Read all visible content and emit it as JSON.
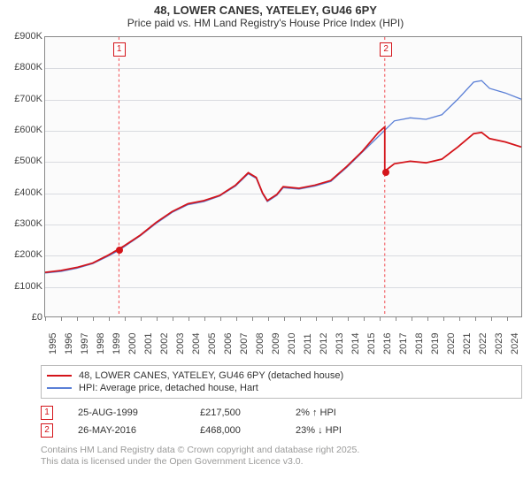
{
  "title": {
    "line1": "48, LOWER CANES, YATELEY, GU46 6PY",
    "line2": "Price paid vs. HM Land Registry's House Price Index (HPI)",
    "fontsize_line1": 13,
    "fontsize_line2": 12
  },
  "chart": {
    "type": "line",
    "background_color": "#fbfbfb",
    "grid_color": "#d9dbe0",
    "axis_color": "#888888",
    "label_fontsize": 11,
    "y": {
      "min": 0,
      "max": 900000,
      "step": 100000,
      "labels": [
        "£0",
        "£100K",
        "£200K",
        "£300K",
        "£400K",
        "£500K",
        "£600K",
        "£700K",
        "£800K",
        "£900K"
      ]
    },
    "x": {
      "min": 1995,
      "max": 2025,
      "step": 1,
      "labels": [
        "1995",
        "1996",
        "1997",
        "1998",
        "1999",
        "2000",
        "2001",
        "2002",
        "2003",
        "2004",
        "2005",
        "2006",
        "2007",
        "2008",
        "2009",
        "2010",
        "2011",
        "2012",
        "2013",
        "2014",
        "2015",
        "2016",
        "2017",
        "2018",
        "2019",
        "2020",
        "2021",
        "2022",
        "2023",
        "2024"
      ]
    },
    "series": {
      "hpi": {
        "label": "HPI: Average price, detached house, Hart",
        "color": "#5a7fd6",
        "width": 1.3,
        "points": [
          [
            1995.0,
            140000
          ],
          [
            1996.0,
            145000
          ],
          [
            1997.0,
            155000
          ],
          [
            1998.0,
            170000
          ],
          [
            1999.0,
            195000
          ],
          [
            1999.65,
            213000
          ],
          [
            2000.0,
            225000
          ],
          [
            2001.0,
            260000
          ],
          [
            2002.0,
            300000
          ],
          [
            2003.0,
            335000
          ],
          [
            2004.0,
            360000
          ],
          [
            2005.0,
            370000
          ],
          [
            2006.0,
            388000
          ],
          [
            2007.0,
            420000
          ],
          [
            2007.8,
            460000
          ],
          [
            2008.3,
            445000
          ],
          [
            2008.7,
            395000
          ],
          [
            2009.0,
            370000
          ],
          [
            2009.6,
            390000
          ],
          [
            2010.0,
            415000
          ],
          [
            2011.0,
            410000
          ],
          [
            2012.0,
            420000
          ],
          [
            2013.0,
            435000
          ],
          [
            2014.0,
            480000
          ],
          [
            2015.0,
            530000
          ],
          [
            2016.0,
            580000
          ],
          [
            2016.4,
            600000
          ],
          [
            2017.0,
            630000
          ],
          [
            2018.0,
            640000
          ],
          [
            2019.0,
            635000
          ],
          [
            2020.0,
            650000
          ],
          [
            2021.0,
            700000
          ],
          [
            2022.0,
            755000
          ],
          [
            2022.5,
            760000
          ],
          [
            2023.0,
            735000
          ],
          [
            2024.0,
            720000
          ],
          [
            2025.0,
            700000
          ]
        ]
      },
      "price": {
        "label": "48, LOWER CANES, YATELEY, GU46 6PY (detached house)",
        "color": "#d4141a",
        "width": 1.8,
        "points": [
          [
            1995.0,
            142000
          ],
          [
            1996.0,
            148000
          ],
          [
            1997.0,
            158000
          ],
          [
            1998.0,
            172000
          ],
          [
            1999.0,
            198000
          ],
          [
            1999.65,
            217500
          ],
          [
            2000.0,
            228000
          ],
          [
            2001.0,
            262000
          ],
          [
            2002.0,
            303000
          ],
          [
            2003.0,
            338000
          ],
          [
            2004.0,
            363000
          ],
          [
            2005.0,
            373000
          ],
          [
            2006.0,
            390000
          ],
          [
            2007.0,
            423000
          ],
          [
            2007.8,
            463000
          ],
          [
            2008.3,
            448000
          ],
          [
            2008.7,
            398000
          ],
          [
            2009.0,
            373000
          ],
          [
            2009.6,
            393000
          ],
          [
            2010.0,
            418000
          ],
          [
            2011.0,
            413000
          ],
          [
            2012.0,
            423000
          ],
          [
            2013.0,
            438000
          ],
          [
            2014.0,
            483000
          ],
          [
            2015.0,
            533000
          ],
          [
            2016.0,
            593000
          ],
          [
            2016.4,
            611000
          ],
          [
            2016.4,
            468000
          ],
          [
            2017.0,
            492000
          ],
          [
            2018.0,
            500000
          ],
          [
            2019.0,
            495000
          ],
          [
            2020.0,
            507000
          ],
          [
            2021.0,
            546000
          ],
          [
            2022.0,
            589000
          ],
          [
            2022.5,
            593000
          ],
          [
            2023.0,
            573000
          ],
          [
            2024.0,
            562000
          ],
          [
            2025.0,
            546000
          ]
        ]
      }
    },
    "markers": [
      {
        "id": "1",
        "x": 1999.65,
        "y": 217500,
        "color": "#d4141a"
      },
      {
        "id": "2",
        "x": 2016.4,
        "y": 468000,
        "color": "#d4141a"
      }
    ],
    "marker_line_color": "#f24a4f"
  },
  "legend": {
    "border_color": "#bcbcbc",
    "rows": [
      {
        "color": "#d4141a",
        "label": "48, LOWER CANES, YATELEY, GU46 6PY (detached house)"
      },
      {
        "color": "#5a7fd6",
        "label": "HPI: Average price, detached house, Hart"
      }
    ]
  },
  "sales": [
    {
      "id": "1",
      "color": "#d4141a",
      "date": "25-AUG-1999",
      "price": "£217,500",
      "delta": "2% ↑ HPI"
    },
    {
      "id": "2",
      "color": "#d4141a",
      "date": "26-MAY-2016",
      "price": "£468,000",
      "delta": "23% ↓ HPI"
    }
  ],
  "footer": {
    "line1": "Contains HM Land Registry data © Crown copyright and database right 2025.",
    "line2": "This data is licensed under the Open Government Licence v3.0."
  }
}
